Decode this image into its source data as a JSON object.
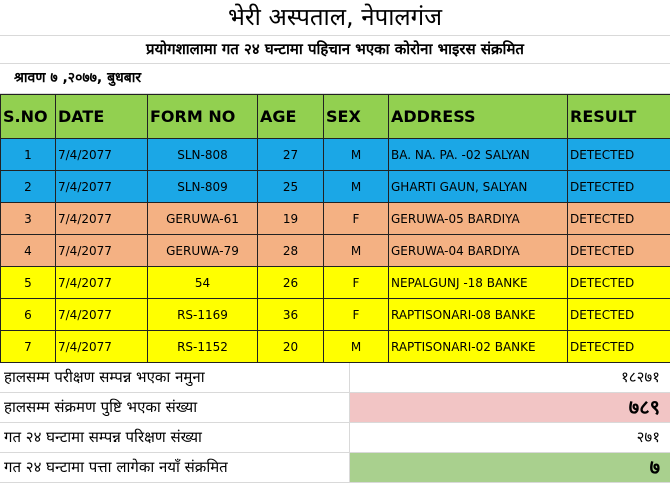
{
  "header": {
    "title": "भेरी अस्पताल, नेपालगंज",
    "subtitle": "प्रयोगशालामा गत २४ घन्टामा पहिचान भएका कोरोना भाइरस संक्रमित",
    "date": "श्रावण ७ ,२०७७, बुधबार"
  },
  "table": {
    "columns": [
      "S.NO",
      "DATE",
      "FORM NO",
      "AGE",
      "SEX",
      "ADDRESS",
      "RESULT"
    ],
    "rows": [
      [
        "1",
        "7/4/2077",
        "SLN-808",
        "27",
        "M",
        "BA. NA. PA. -02 SALYAN",
        "DETECTED"
      ],
      [
        "2",
        "7/4/2077",
        "SLN-809",
        "25",
        "M",
        "GHARTI GAUN, SALYAN",
        "DETECTED"
      ],
      [
        "3",
        "7/4/2077",
        "GERUWA-61",
        "19",
        "F",
        "GERUWA-05 BARDIYA",
        "DETECTED"
      ],
      [
        "4",
        "7/4/2077",
        "GERUWA-79",
        "28",
        "M",
        "GERUWA-04 BARDIYA",
        "DETECTED"
      ],
      [
        "5",
        "7/4/2077",
        "54",
        "26",
        "F",
        "NEPALGUNJ -18 BANKE",
        "DETECTED"
      ],
      [
        "6",
        "7/4/2077",
        "RS-1169",
        "36",
        "F",
        "RAPTISONARI-08 BANKE",
        "DETECTED"
      ],
      [
        "7",
        "7/4/2077",
        "RS-1152",
        "20",
        "M",
        "RAPTISONARI-02 BANKE",
        "DETECTED"
      ]
    ]
  },
  "summary": [
    {
      "label": "हालसम्म परीक्षण सम्पन्न भएका नमुना",
      "value": "१८२७१"
    },
    {
      "label": "हालसम्म संक्रमण पुष्टि भएका संख्या",
      "value": "७८९"
    },
    {
      "label": "गत २४ घन्टामा सम्पन्न परिक्षण संख्या",
      "value": "२७१"
    },
    {
      "label": "गत २४ घन्टामा पत्ता लागेका नयाँ संक्रमित",
      "value": "७"
    }
  ]
}
